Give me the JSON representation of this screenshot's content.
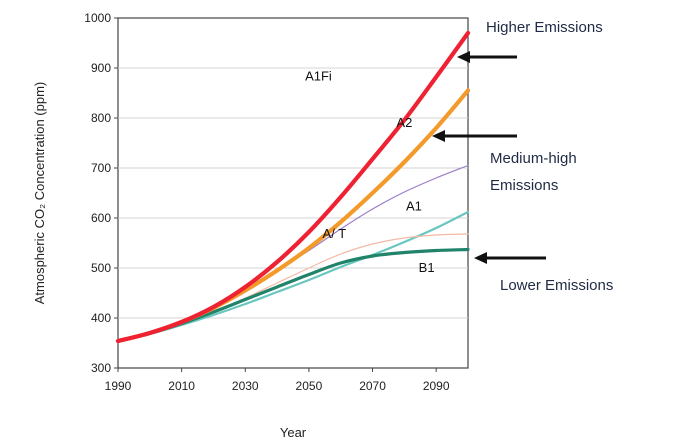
{
  "chart_data": {
    "type": "line",
    "xlabel": "Year",
    "ylabel": "Atmospheric CO₂ Concentration (ppm)",
    "xlim": [
      1990,
      2100
    ],
    "ylim": [
      300,
      1000
    ],
    "x_ticks": [
      "1990",
      "2010",
      "2030",
      "2050",
      "2070",
      "2090"
    ],
    "y_ticks": [
      "300",
      "400",
      "500",
      "600",
      "700",
      "800",
      "900",
      "1000"
    ],
    "grid": true,
    "x": [
      1990,
      2000,
      2010,
      2020,
      2030,
      2040,
      2050,
      2060,
      2070,
      2080,
      2090,
      2100
    ],
    "series": [
      {
        "name": "A1FI",
        "color": "#ee2233",
        "values": [
          354,
          370,
          392,
          422,
          462,
          512,
          572,
          642,
          718,
          796,
          882,
          970
        ]
      },
      {
        "name": "A2",
        "color": "#f39a2b",
        "values": [
          354,
          370,
          392,
          420,
          455,
          495,
          540,
          592,
          650,
          712,
          780,
          855
        ]
      },
      {
        "name": "A1",
        "color": "#9b7ec8",
        "values": [
          354,
          370,
          392,
          420,
          455,
          495,
          535,
          578,
          618,
          652,
          680,
          705
        ]
      },
      {
        "name": "A1T",
        "color": "#f2b9a4",
        "values": [
          354,
          369,
          390,
          412,
          440,
          470,
          500,
          528,
          548,
          560,
          566,
          568
        ]
      },
      {
        "name": "B1",
        "color": "#20836a",
        "values": [
          354,
          369,
          389,
          412,
          437,
          462,
          487,
          510,
          524,
          531,
          535,
          537
        ]
      },
      {
        "name": "",
        "color": "#69c6c0",
        "values": [
          354,
          368,
          386,
          406,
          428,
          452,
          476,
          502,
          526,
          552,
          580,
          612
        ]
      }
    ],
    "labels": [
      {
        "text": "A1Fi",
        "x": 2053,
        "y": 875
      },
      {
        "text": "A2",
        "x": 2080,
        "y": 782
      },
      {
        "text": "A1",
        "x": 2083,
        "y": 615
      },
      {
        "text": "A/ T",
        "x": 2058,
        "y": 560
      },
      {
        "text": "B1",
        "x": 2087,
        "y": 492
      }
    ],
    "annotations": [
      {
        "text": "Higher Emissions",
        "series": "A1FI"
      },
      {
        "lines": [
          "Medium-high",
          "Emissions"
        ],
        "series": "A2"
      },
      {
        "text": "Lower Emissions",
        "series": "B1"
      }
    ]
  }
}
